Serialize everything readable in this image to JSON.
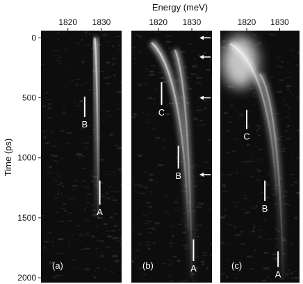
{
  "chart_data": {
    "type": "heatmap",
    "x_axis_label": "Energy (meV)",
    "y_axis_label": "Time (ps)",
    "x_ticks": [
      1820,
      1830
    ],
    "y_ticks": [
      0,
      500,
      1000,
      1500,
      2000
    ],
    "xlim": [
      1812,
      1836
    ],
    "ylim": [
      -60,
      2040
    ],
    "colormap": "grayscale",
    "panels": [
      {
        "label": "(a)",
        "emission_traces": [
          {
            "start_energy": 1828,
            "end_energy": 1829,
            "start_time": 0,
            "end_time": 1500,
            "brightness": 0.7
          }
        ],
        "markers": [
          {
            "text": "B",
            "energy": 1825,
            "time_top": 490,
            "time_bottom": 660
          },
          {
            "text": "A",
            "energy": 1829.5,
            "time_top": 1190,
            "time_bottom": 1390
          }
        ],
        "arrows": []
      },
      {
        "label": "(b)",
        "emission_traces": [
          {
            "start_energy": 1818,
            "end_energy": 1829,
            "start_time": 40,
            "end_time": 1600,
            "brightness": 0.7
          },
          {
            "start_energy": 1825,
            "end_energy": 1830,
            "start_time": 100,
            "end_time": 2000,
            "brightness": 0.55
          }
        ],
        "markers": [
          {
            "text": "C",
            "energy": 1821,
            "time_top": 370,
            "time_bottom": 560
          },
          {
            "text": "B",
            "energy": 1826,
            "time_top": 900,
            "time_bottom": 1090
          },
          {
            "text": "A",
            "energy": 1830.5,
            "time_top": 1680,
            "time_bottom": 1860
          }
        ],
        "arrows": [
          {
            "time": 0
          },
          {
            "time": 160
          },
          {
            "time": 500
          },
          {
            "time": 1140
          }
        ]
      },
      {
        "label": "(c)",
        "emission_traces": [
          {
            "start_energy": 1815,
            "end_energy": 1829,
            "start_time": 50,
            "end_time": 1300,
            "brightness": 0.6
          },
          {
            "start_energy": 1824,
            "end_energy": 1831,
            "start_time": 300,
            "end_time": 2000,
            "brightness": 0.45
          }
        ],
        "markers": [
          {
            "text": "C",
            "energy": 1820,
            "time_top": 600,
            "time_bottom": 760
          },
          {
            "text": "B",
            "energy": 1825.5,
            "time_top": 1190,
            "time_bottom": 1360
          },
          {
            "text": "A",
            "energy": 1829.5,
            "time_top": 1780,
            "time_bottom": 1910
          }
        ],
        "arrows": [],
        "hot_spot": {
          "energy": 1818,
          "time": 200
        }
      }
    ]
  }
}
